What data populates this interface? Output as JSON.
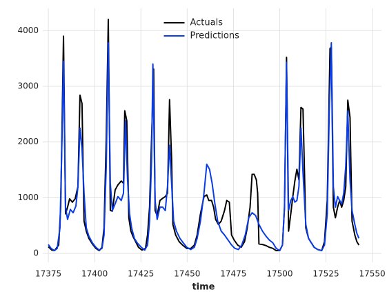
{
  "chart_data": {
    "type": "line",
    "xlabel": "time",
    "xlim": [
      17372,
      17555
    ],
    "ylim": [
      -160,
      4400
    ],
    "xticks": [
      17375,
      17400,
      17425,
      17450,
      17475,
      17500,
      17525,
      17550
    ],
    "yticks": [
      0,
      1000,
      2000,
      3000,
      4000
    ],
    "grid": true,
    "legend": "upper center",
    "series": [
      {
        "name": "Actuals",
        "color": "#000000",
        "x": [
          17375,
          17376.9,
          17378.3,
          17380.6,
          17381.7,
          17383.2,
          17384.3,
          17385.4,
          17386.5,
          17388,
          17389.5,
          17391,
          17392.1,
          17393.2,
          17394.3,
          17395.5,
          17396.9,
          17398.8,
          17400.7,
          17402.5,
          17404,
          17405.1,
          17406.3,
          17407.4,
          17408.5,
          17409.6,
          17411.1,
          17412.6,
          17414.4,
          17415.6,
          17416.3,
          17417.4,
          17418.5,
          17419.6,
          17420.8,
          17422.2,
          17423.7,
          17425.6,
          17427.5,
          17428.6,
          17429.7,
          17430.8,
          17431.9,
          17432.7,
          17433.8,
          17435.3,
          17436.8,
          17438.2,
          17439.4,
          17440.5,
          17441.6,
          17442.3,
          17443.8,
          17445.7,
          17447.5,
          17449.8,
          17452,
          17453.9,
          17455.4,
          17457.2,
          17459.1,
          17460.6,
          17461.7,
          17463.2,
          17464.3,
          17465.4,
          17466.9,
          17468.4,
          17470.2,
          17471.4,
          17472.8,
          17474,
          17475.4,
          17477.3,
          17479.2,
          17481,
          17482.5,
          17484,
          17485.1,
          17486.2,
          17487.4,
          17488.1,
          17488.8,
          17490.7,
          17492.6,
          17494.4,
          17496.3,
          17498.1,
          17500,
          17501.5,
          17502.6,
          17503.7,
          17504.8,
          17506,
          17507.1,
          17508.2,
          17509.3,
          17510.4,
          17511.5,
          17512.6,
          17514.1,
          17515.6,
          17517.1,
          17518.6,
          17520.5,
          17522.7,
          17524.2,
          17525.7,
          17527.2,
          17527.9,
          17529,
          17530.1,
          17531.3,
          17532.4,
          17533.5,
          17534.6,
          17535.7,
          17536.8,
          17538,
          17539.1,
          17540.6,
          17541.7,
          17542.8
        ],
        "values": [
          120,
          60,
          50,
          150,
          830,
          3900,
          710,
          830,
          980,
          920,
          980,
          1200,
          2840,
          2690,
          580,
          400,
          270,
          170,
          90,
          50,
          110,
          460,
          2070,
          4200,
          770,
          760,
          1140,
          1230,
          1300,
          1260,
          2560,
          2380,
          640,
          400,
          300,
          210,
          110,
          60,
          90,
          330,
          830,
          2070,
          3310,
          770,
          680,
          950,
          990,
          1020,
          1080,
          2760,
          1700,
          520,
          330,
          210,
          150,
          90,
          90,
          150,
          330,
          710,
          1020,
          1050,
          950,
          950,
          830,
          610,
          520,
          580,
          770,
          950,
          920,
          330,
          240,
          150,
          110,
          210,
          460,
          830,
          1420,
          1420,
          1320,
          1080,
          170,
          160,
          140,
          110,
          90,
          50,
          50,
          150,
          830,
          3520,
          400,
          710,
          1020,
          1300,
          1510,
          1320,
          2620,
          2590,
          460,
          270,
          190,
          110,
          70,
          50,
          210,
          950,
          3680,
          3700,
          830,
          640,
          830,
          950,
          830,
          950,
          1200,
          2750,
          2440,
          580,
          330,
          210,
          150
        ]
      },
      {
        "name": "Predictions",
        "color": "#0a3de6",
        "x": [
          17375,
          17376.5,
          17378.3,
          17379.8,
          17381.3,
          17382.4,
          17383.2,
          17384.3,
          17385.4,
          17386.9,
          17388.4,
          17389.9,
          17391,
          17392.1,
          17393.2,
          17394.3,
          17395.5,
          17396.9,
          17398.8,
          17400.7,
          17402.5,
          17404,
          17405.1,
          17406.3,
          17407.4,
          17408.5,
          17409.6,
          17411.1,
          17412.6,
          17414.4,
          17415.6,
          17416.7,
          17417.8,
          17418.9,
          17420,
          17421.5,
          17423,
          17425.2,
          17427.1,
          17428.6,
          17429.7,
          17430.8,
          17431.5,
          17432.7,
          17433.8,
          17435.3,
          17436.8,
          17438.2,
          17439.4,
          17440.5,
          17441.6,
          17442.7,
          17444.2,
          17446.1,
          17447.9,
          17449.8,
          17452,
          17453.9,
          17455.4,
          17457.2,
          17459.1,
          17460.6,
          17462.1,
          17463.5,
          17465,
          17466.5,
          17468.4,
          17470.2,
          17472.1,
          17474,
          17475.8,
          17477.7,
          17479.5,
          17481.4,
          17483.3,
          17485.1,
          17487,
          17488.8,
          17490.7,
          17492.6,
          17494.4,
          17496.3,
          17498.1,
          17500,
          17501.5,
          17502.6,
          17503.7,
          17504.8,
          17506,
          17507.1,
          17508.2,
          17509.3,
          17510.4,
          17511.5,
          17512.6,
          17514.1,
          17515.6,
          17517.1,
          17518.6,
          17520.5,
          17522.7,
          17524.2,
          17525.7,
          17526.8,
          17527.9,
          17529,
          17530.1,
          17531.3,
          17532.4,
          17533.5,
          17534.6,
          17535.7,
          17536.8,
          17538,
          17539.1,
          17540.6,
          17541.7,
          17542.8
        ],
        "values": [
          160,
          90,
          50,
          90,
          460,
          2070,
          3450,
          830,
          610,
          790,
          730,
          850,
          1200,
          2250,
          1880,
          1080,
          460,
          310,
          190,
          110,
          60,
          90,
          330,
          1570,
          3780,
          1260,
          770,
          890,
          1020,
          950,
          1080,
          2380,
          1320,
          710,
          460,
          270,
          190,
          110,
          60,
          150,
          580,
          1700,
          3400,
          950,
          610,
          830,
          830,
          770,
          1200,
          1940,
          1260,
          580,
          400,
          270,
          190,
          110,
          70,
          110,
          270,
          580,
          1080,
          1600,
          1510,
          1260,
          890,
          580,
          400,
          330,
          240,
          150,
          90,
          70,
          150,
          330,
          640,
          730,
          680,
          520,
          400,
          310,
          240,
          190,
          90,
          50,
          150,
          830,
          3430,
          770,
          950,
          1020,
          920,
          950,
          1200,
          2250,
          1450,
          520,
          270,
          190,
          110,
          70,
          50,
          150,
          710,
          2560,
          3780,
          1200,
          830,
          1020,
          950,
          890,
          1080,
          1570,
          2560,
          1320,
          770,
          520,
          360,
          270
        ]
      }
    ]
  }
}
